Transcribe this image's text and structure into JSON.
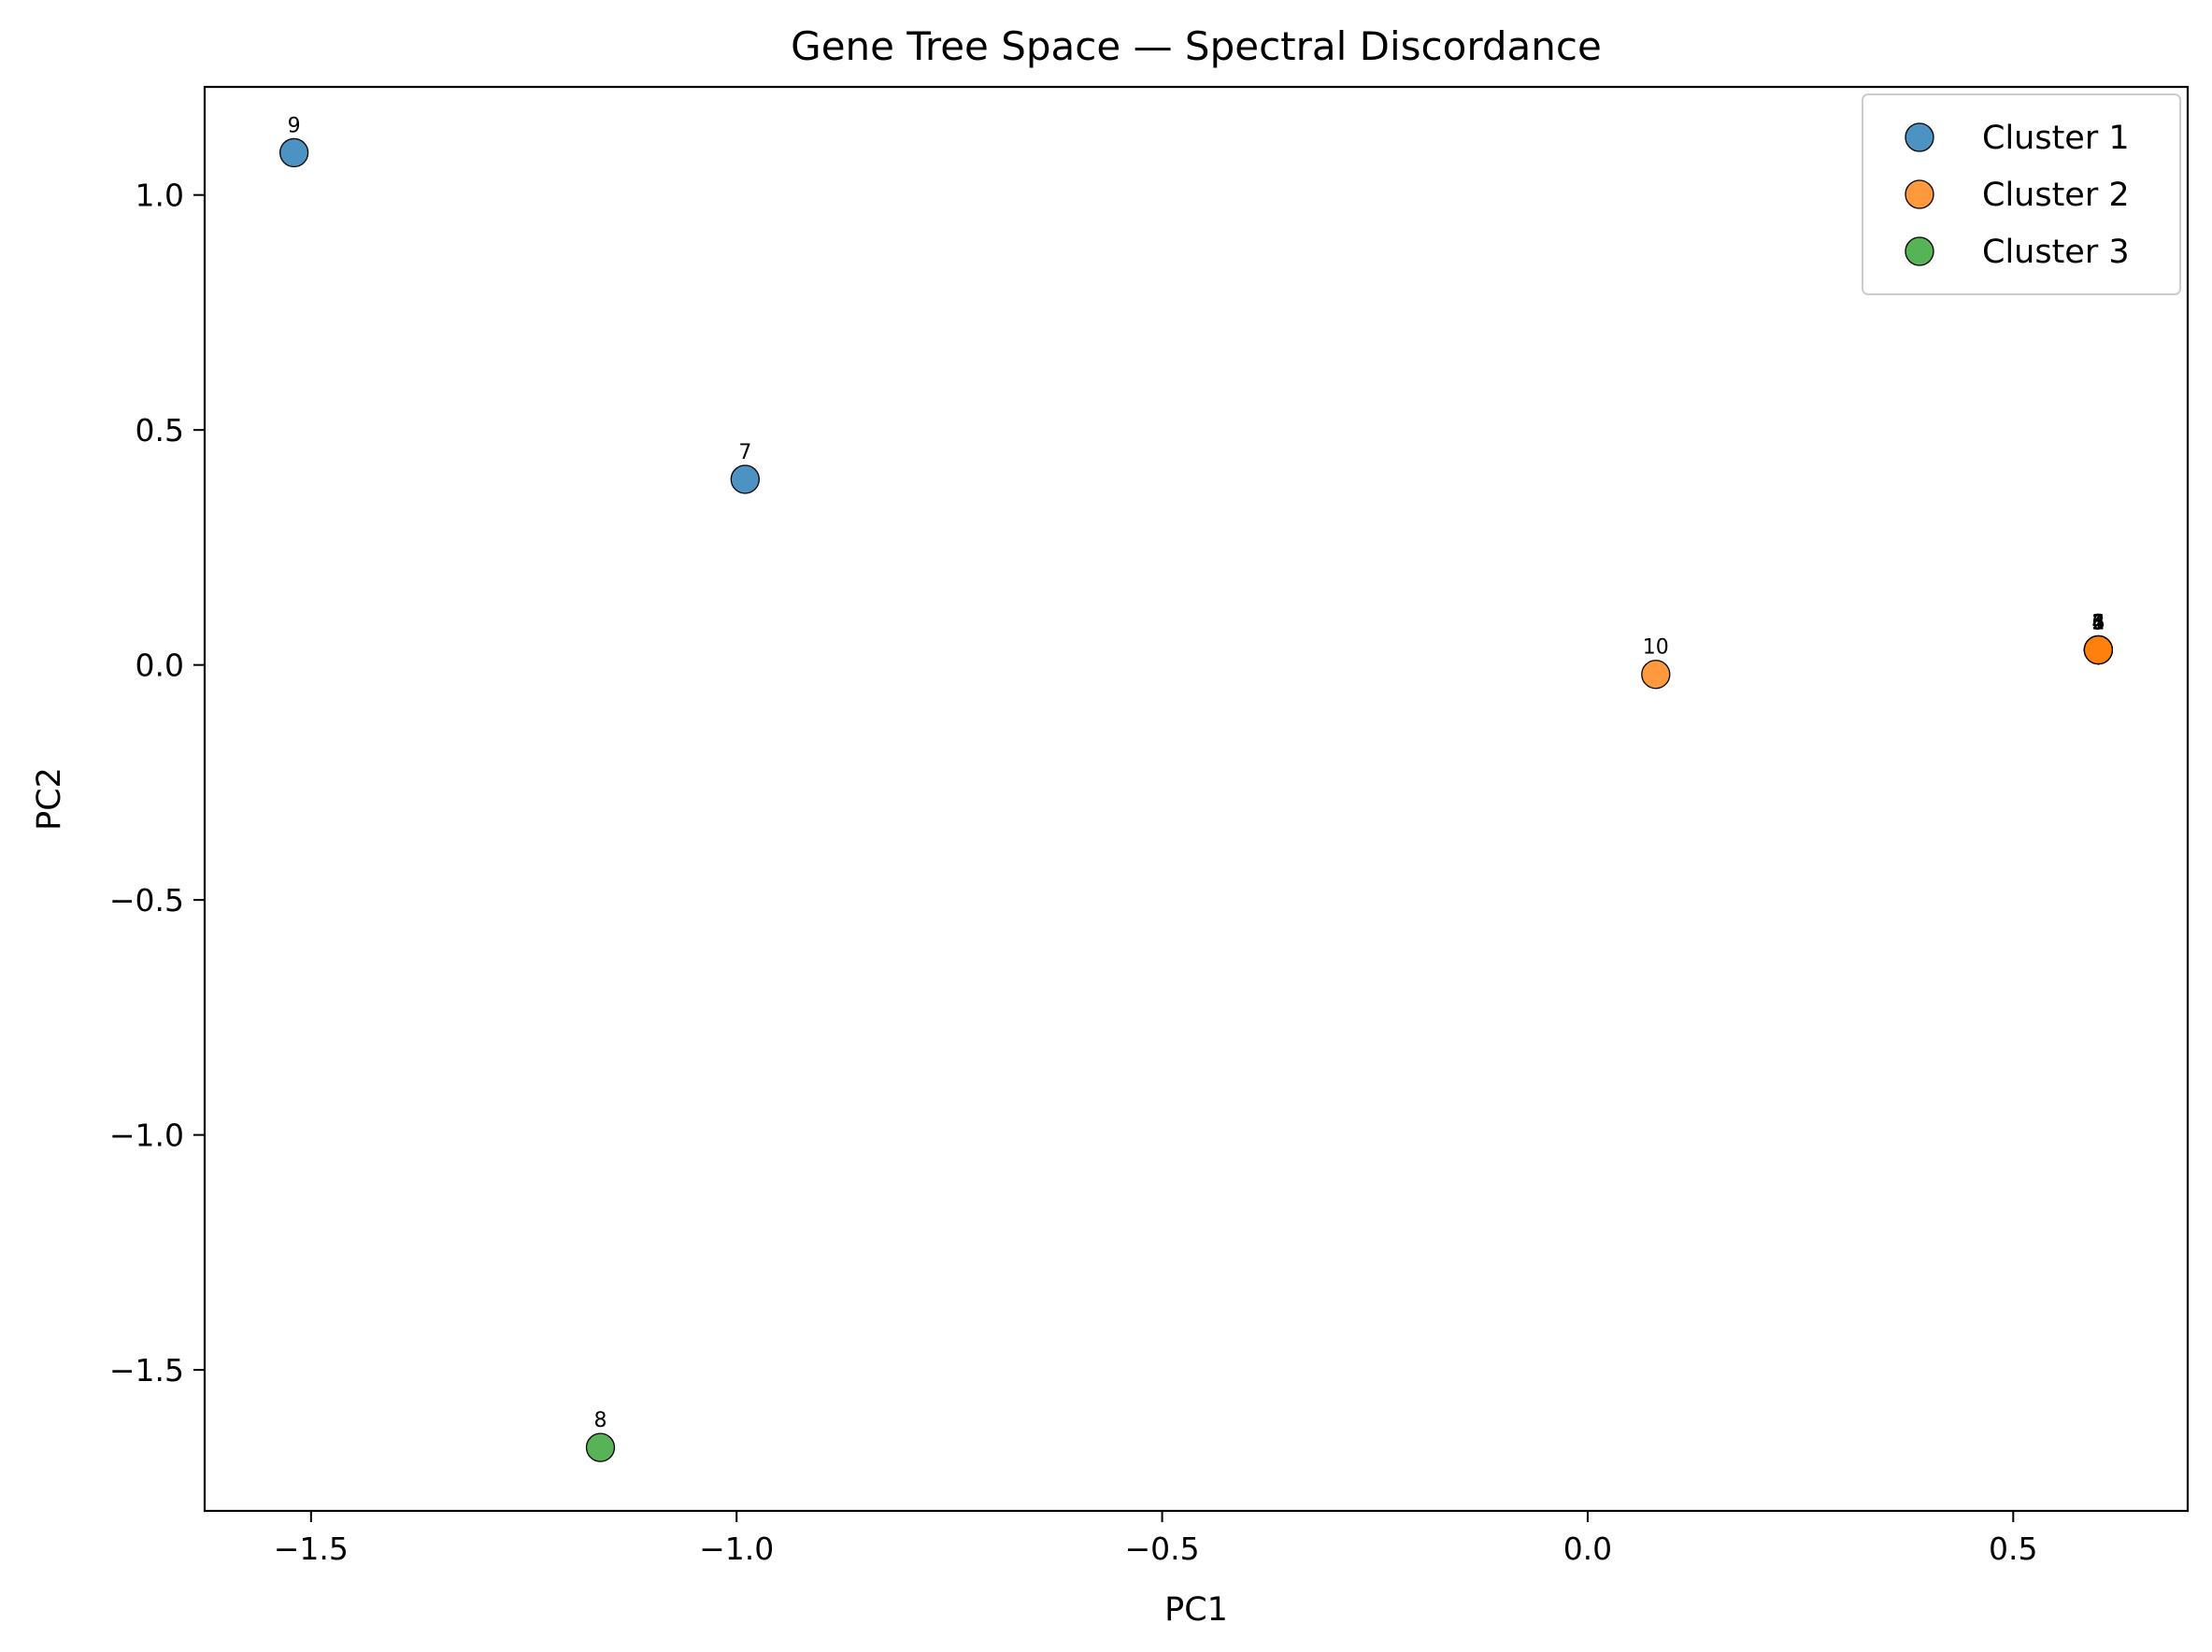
{
  "chart_data": {
    "type": "scatter",
    "title": "Gene Tree Space — Spectral Discordance",
    "xlabel": "PC1",
    "ylabel": "PC2",
    "xlim": [
      -1.625,
      0.705
    ],
    "ylim": [
      -1.8,
      1.23
    ],
    "xticks": [
      {
        "value": -1.5,
        "label": "−1.5"
      },
      {
        "value": -1.0,
        "label": "−1.0"
      },
      {
        "value": -0.5,
        "label": "−0.5"
      },
      {
        "value": 0.0,
        "label": "0.0"
      },
      {
        "value": 0.5,
        "label": "0.5"
      }
    ],
    "yticks": [
      {
        "value": 1.0,
        "label": "1.0"
      },
      {
        "value": 0.5,
        "label": "0.5"
      },
      {
        "value": 0.0,
        "label": "0.0"
      },
      {
        "value": -0.5,
        "label": "−0.5"
      },
      {
        "value": -1.0,
        "label": "−1.0"
      },
      {
        "value": -1.5,
        "label": "−1.5"
      }
    ],
    "grid": false,
    "legend_position": "top-right",
    "series": [
      {
        "name": "Cluster 1",
        "color": "#1f77b4",
        "points": [
          {
            "label": "9",
            "x": -1.52,
            "y": 1.09
          },
          {
            "label": "7",
            "x": -0.99,
            "y": 0.395
          }
        ]
      },
      {
        "name": "Cluster 2",
        "color": "#ff7f0e",
        "points": [
          {
            "label": "10",
            "x": 0.08,
            "y": -0.02
          },
          {
            "label": "1",
            "x": 0.6,
            "y": 0.032
          },
          {
            "label": "2",
            "x": 0.6,
            "y": 0.032
          },
          {
            "label": "3",
            "x": 0.6,
            "y": 0.032
          },
          {
            "label": "4",
            "x": 0.6,
            "y": 0.032
          },
          {
            "label": "5",
            "x": 0.6,
            "y": 0.032
          },
          {
            "label": "6",
            "x": 0.6,
            "y": 0.032
          }
        ]
      },
      {
        "name": "Cluster 3",
        "color": "#2ca02c",
        "points": [
          {
            "label": "8",
            "x": -1.16,
            "y": -1.665
          }
        ]
      }
    ]
  }
}
